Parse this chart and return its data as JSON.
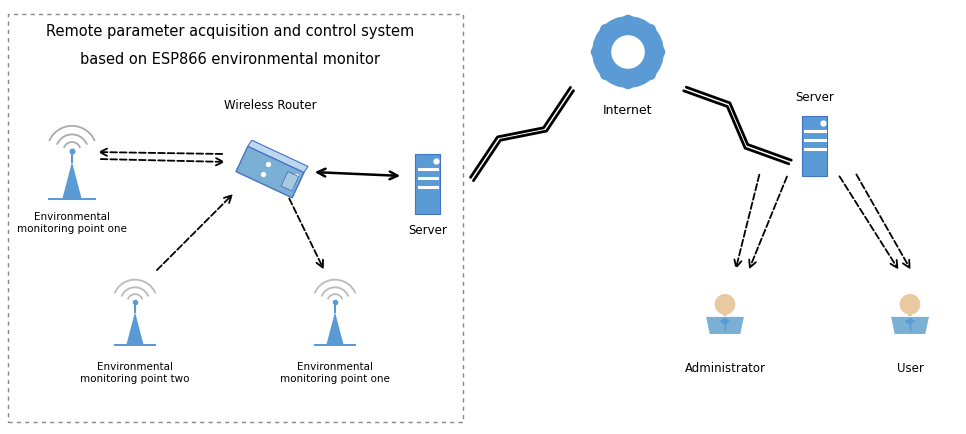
{
  "title_line1": "Remote parameter acquisition and control system",
  "title_line2": "based on ESP866 environmental monitor",
  "title_fontsize": 10.5,
  "fig_bg": "#ffffff",
  "labels": {
    "wireless_router": "Wireless Router",
    "server_left": "Server",
    "server_right": "Server",
    "internet": "Internet",
    "env_point_one_top": "Environmental\nmonitoring point one",
    "env_point_two": "Environmental\nmonitoring point two",
    "env_point_one_bot": "Environmental\nmonitoring point one",
    "administrator": "Administrator",
    "user": "User"
  },
  "colors": {
    "blue_dark": "#4472C4",
    "blue_mid": "#5B9BD5",
    "blue_light": "#7BAFD4",
    "blue_pale": "#BDD7EE",
    "blue_server": "#4472C4",
    "blue_very_light": "#DEEAF1",
    "wifi_arc": "#AAAAAA",
    "box_edge": "#999999",
    "text_color": "#000000",
    "skin": "#E8C9A0",
    "skin_shadow": "#D4A574",
    "body_blue": "#7AB0D4",
    "body_blue_dark": "#5B9BD5",
    "internet_ring": "#5B9BD5",
    "internet_spoke": "#AAAACC",
    "internet_dot": "#5B9BD5"
  }
}
